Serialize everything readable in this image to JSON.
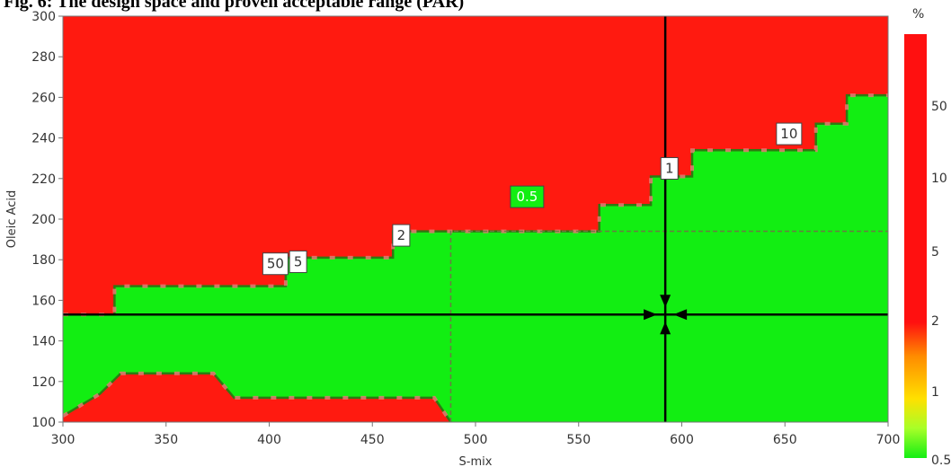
{
  "figure": {
    "title": "Fig. 6: The design space and proven acceptable range (PAR)"
  },
  "colors": {
    "fail": "#ff1a10",
    "pass": "#12ee12",
    "edge": "#2e7a12",
    "light_edge": "#f07a7a",
    "crosshair": "#000000",
    "dash": "#6b7b44"
  },
  "chart_data": {
    "type": "contour",
    "title": "",
    "xlabel": "S-mix",
    "ylabel": "Oleic Acid",
    "xlim": [
      300,
      700
    ],
    "ylim": [
      100,
      300
    ],
    "xticks": [
      300,
      350,
      400,
      450,
      500,
      550,
      600,
      650,
      700
    ],
    "yticks": [
      100,
      120,
      140,
      160,
      180,
      200,
      220,
      240,
      260,
      280,
      300
    ],
    "grid": false,
    "regions": {
      "upper_fail_boundary": [
        [
          300,
          153
        ],
        [
          325,
          153
        ],
        [
          325,
          167
        ],
        [
          408,
          167
        ],
        [
          408,
          181
        ],
        [
          460,
          181
        ],
        [
          460,
          194
        ],
        [
          560,
          194
        ],
        [
          560,
          207
        ],
        [
          585,
          207
        ],
        [
          585,
          221
        ],
        [
          605,
          221
        ],
        [
          605,
          234
        ],
        [
          665,
          234
        ],
        [
          665,
          247
        ],
        [
          680,
          247
        ],
        [
          680,
          261
        ],
        [
          700,
          261
        ]
      ],
      "lower_fail_boundary": [
        [
          300,
          103
        ],
        [
          318,
          114
        ],
        [
          328,
          124
        ],
        [
          373,
          124
        ],
        [
          383,
          112
        ],
        [
          480,
          112
        ],
        [
          488,
          100
        ]
      ]
    },
    "contour_labels": [
      {
        "text": "50",
        "x": 403,
        "y": 178
      },
      {
        "text": "5",
        "x": 414,
        "y": 179
      },
      {
        "text": "2",
        "x": 464,
        "y": 192
      },
      {
        "text": "0.5",
        "x": 525,
        "y": 211
      },
      {
        "text": "1",
        "x": 594,
        "y": 225
      },
      {
        "text": "10",
        "x": 652,
        "y": 242
      }
    ],
    "crosshair": {
      "x": 592,
      "y": 153
    },
    "par_box": {
      "x": [
        488,
        700
      ],
      "y": [
        100,
        194
      ]
    },
    "colorbar": {
      "unit": "%",
      "labels": [
        "50",
        "10",
        "5",
        "2",
        "1",
        "0.5"
      ]
    }
  }
}
